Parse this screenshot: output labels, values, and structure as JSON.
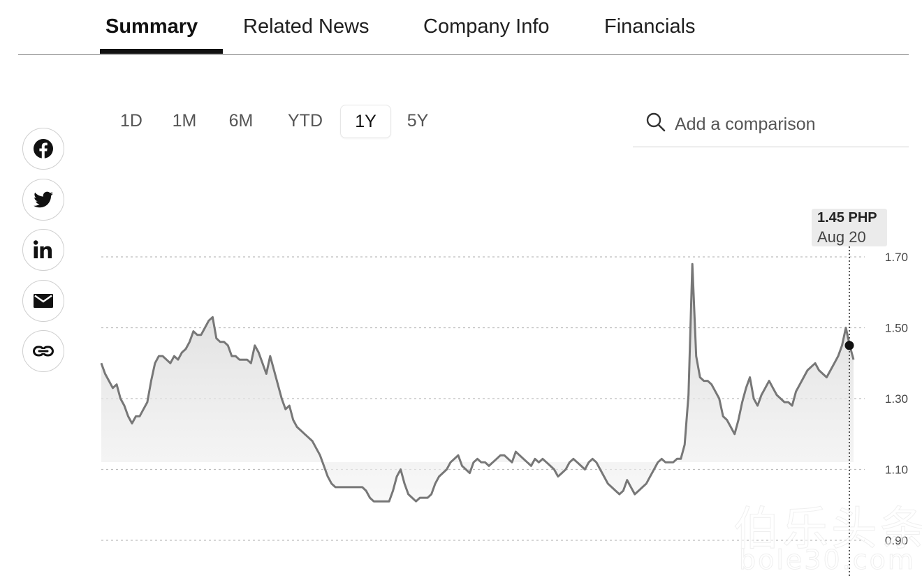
{
  "tabs": [
    {
      "label": "Summary",
      "active": true
    },
    {
      "label": "Related News",
      "active": false
    },
    {
      "label": "Company Info",
      "active": false
    },
    {
      "label": "Financials",
      "active": false
    }
  ],
  "ranges": [
    {
      "label": "1D",
      "active": false
    },
    {
      "label": "1M",
      "active": false
    },
    {
      "label": "6M",
      "active": false
    },
    {
      "label": "YTD",
      "active": false
    },
    {
      "label": "1Y",
      "active": true
    },
    {
      "label": "5Y",
      "active": false
    }
  ],
  "search": {
    "placeholder": "Add a comparison",
    "icon": "search-icon"
  },
  "share": [
    {
      "icon": "facebook-icon"
    },
    {
      "icon": "twitter-icon"
    },
    {
      "icon": "linkedin-icon"
    },
    {
      "icon": "email-icon"
    },
    {
      "icon": "link-icon"
    }
  ],
  "tooltip": {
    "price": "1.45 PHP",
    "date": "Aug 20"
  },
  "watermark": {
    "logo": "Bole",
    "cn": "伯乐头条",
    "url": "bole30.com"
  },
  "chart_data": {
    "type": "area",
    "ylim": [
      0.9,
      1.7
    ],
    "yticks": [
      "1.70",
      "1.50",
      "1.30",
      "1.10",
      "0.90"
    ],
    "y_tick_values": [
      1.7,
      1.5,
      1.3,
      1.1,
      0.9
    ],
    "grid": true,
    "line_color": "#777777",
    "values": [
      1.4,
      1.37,
      1.35,
      1.33,
      1.34,
      1.3,
      1.28,
      1.25,
      1.23,
      1.25,
      1.25,
      1.27,
      1.29,
      1.35,
      1.4,
      1.42,
      1.42,
      1.41,
      1.4,
      1.42,
      1.41,
      1.43,
      1.44,
      1.46,
      1.49,
      1.48,
      1.48,
      1.5,
      1.52,
      1.53,
      1.47,
      1.46,
      1.46,
      1.45,
      1.42,
      1.42,
      1.41,
      1.41,
      1.41,
      1.4,
      1.45,
      1.43,
      1.4,
      1.37,
      1.42,
      1.38,
      1.34,
      1.3,
      1.27,
      1.28,
      1.24,
      1.22,
      1.21,
      1.2,
      1.19,
      1.18,
      1.16,
      1.14,
      1.11,
      1.08,
      1.06,
      1.05,
      1.05,
      1.05,
      1.05,
      1.05,
      1.05,
      1.05,
      1.05,
      1.04,
      1.02,
      1.01,
      1.01,
      1.01,
      1.01,
      1.01,
      1.04,
      1.08,
      1.1,
      1.06,
      1.03,
      1.02,
      1.01,
      1.02,
      1.02,
      1.02,
      1.03,
      1.06,
      1.08,
      1.09,
      1.1,
      1.12,
      1.13,
      1.14,
      1.11,
      1.1,
      1.09,
      1.12,
      1.13,
      1.12,
      1.12,
      1.11,
      1.12,
      1.13,
      1.14,
      1.14,
      1.13,
      1.12,
      1.15,
      1.14,
      1.13,
      1.12,
      1.11,
      1.13,
      1.12,
      1.13,
      1.12,
      1.11,
      1.1,
      1.08,
      1.09,
      1.1,
      1.12,
      1.13,
      1.12,
      1.11,
      1.1,
      1.12,
      1.13,
      1.12,
      1.1,
      1.08,
      1.06,
      1.05,
      1.04,
      1.03,
      1.04,
      1.07,
      1.05,
      1.03,
      1.04,
      1.05,
      1.06,
      1.08,
      1.1,
      1.12,
      1.13,
      1.12,
      1.12,
      1.12,
      1.13,
      1.13,
      1.17,
      1.31,
      1.68,
      1.42,
      1.36,
      1.35,
      1.35,
      1.34,
      1.32,
      1.3,
      1.25,
      1.24,
      1.22,
      1.2,
      1.24,
      1.29,
      1.33,
      1.36,
      1.3,
      1.28,
      1.31,
      1.33,
      1.35,
      1.33,
      1.31,
      1.3,
      1.29,
      1.29,
      1.28,
      1.32,
      1.34,
      1.36,
      1.38,
      1.39,
      1.4,
      1.38,
      1.37,
      1.36,
      1.38,
      1.4,
      1.42,
      1.45,
      1.5,
      1.45,
      1.41
    ]
  }
}
